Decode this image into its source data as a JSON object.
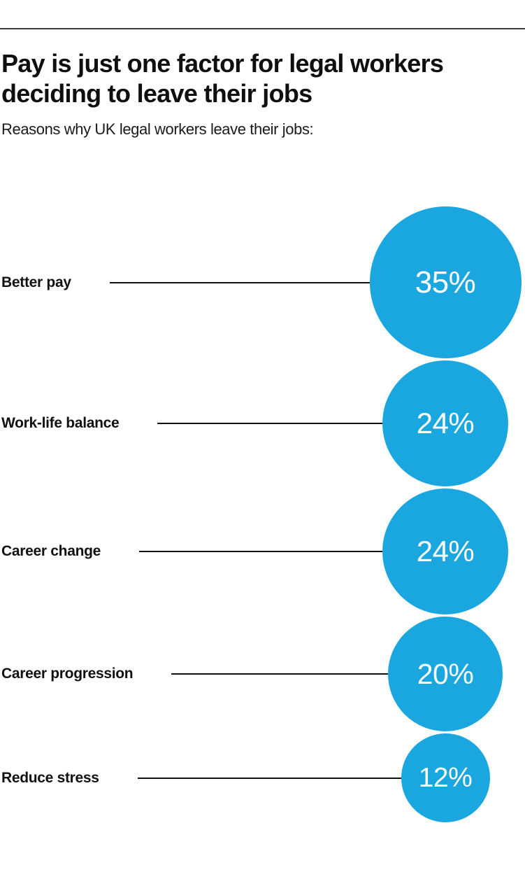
{
  "page": {
    "background": "#ffffff",
    "top_rule_color": "#3c3c3c"
  },
  "chart_data": {
    "type": "bubble",
    "title": "Pay is just one factor for legal workers deciding to leave their jobs",
    "subtitle": "Reasons why UK legal workers leave their jobs:",
    "categories": [
      "Better pay",
      "Work-life balance",
      "Career change",
      "Career progression",
      "Reduce stress"
    ],
    "values": [
      35,
      24,
      24,
      20,
      12
    ],
    "unit": "%",
    "value_labels": [
      "35%",
      "24%",
      "24%",
      "20%",
      "12%"
    ],
    "bubble_color": "#1aa7e0",
    "value_label_color": "#ffffff",
    "category_label_color": "#111111",
    "leader_line_color": "#111111",
    "layout_hints": {
      "legend": "none",
      "grid": false,
      "bubble_scale": "circle area proportional to value (radius ~ sqrt of percent)",
      "arrangement": "vertical list; labels left, leader lines to bubbles aligned on a shared right-side center axis"
    }
  }
}
